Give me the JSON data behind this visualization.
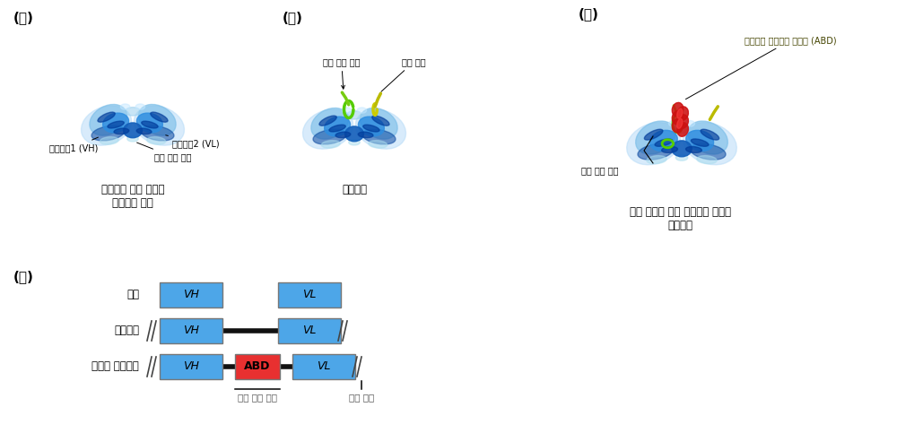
{
  "bg_color": "#ffffff",
  "title_a": "(가)",
  "title_b": "(나)",
  "title_c": "(다)",
  "title_d": "(라)",
  "caption_a": "항체에서 외부 물질과\n결합하는 부분",
  "caption_b": "항체조각",
  "caption_c": "체내 지속성 연장 단백질을 삽입한\n항체조각",
  "label_a1": "항체사슬1 (VH)",
  "label_a2": "항체사슬2 (VL)",
  "label_a3": "항원 결합 영역",
  "label_b1": "내부 연결 부위",
  "label_b2": "말단 영역",
  "label_c1": "알부민과 결합하는 단백질 (ABD)",
  "label_c2": "내부 연결 부위",
  "row_labels": [
    "항체",
    "항체조각",
    "개발된 항체조각"
  ],
  "box_color_blue": "#4da6e8",
  "box_color_red": "#e83030",
  "annotation_label_x": "내부 연결 부위",
  "annotation_label_end": "말단 영역",
  "vH_label": "VH",
  "vL_label": "VL",
  "ABD_label": "ABD"
}
